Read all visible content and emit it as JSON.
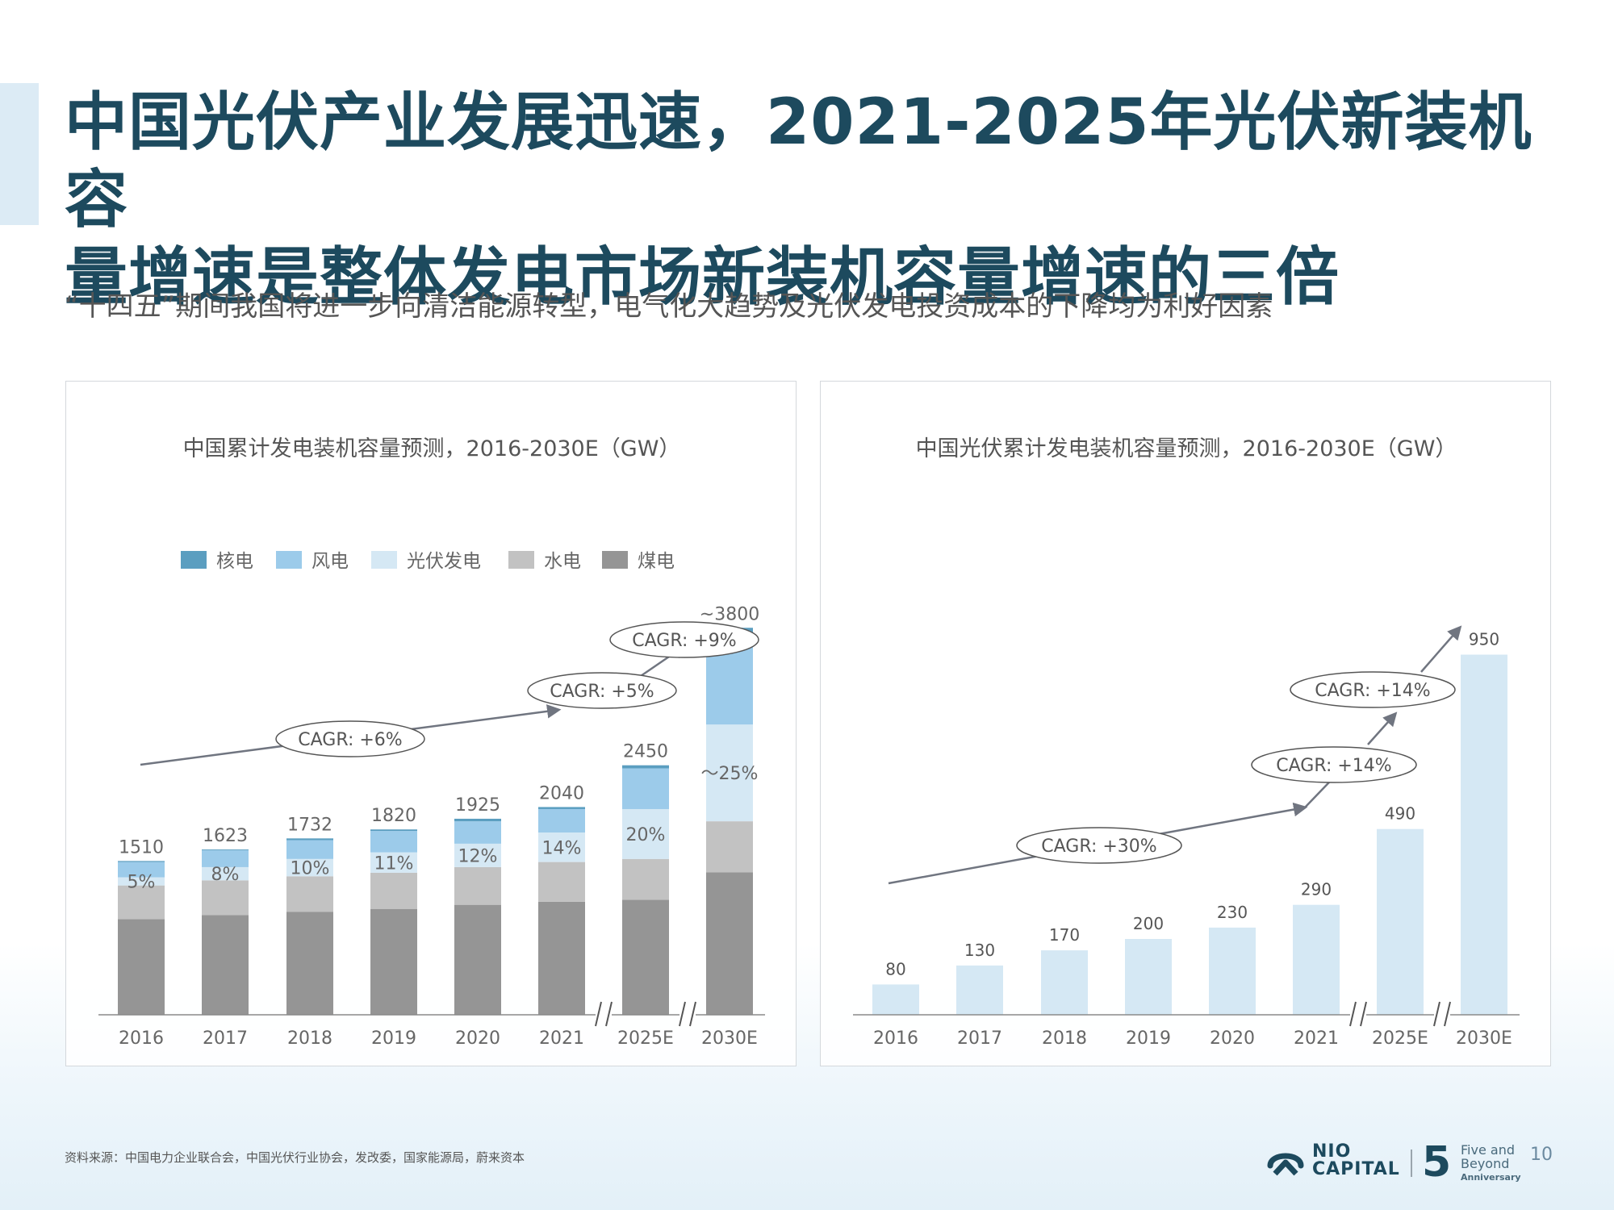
{
  "title_line1": "中国光伏产业发展迅速，2021-2025年光伏新装机容",
  "title_line2": "量增速是整体发电市场新装机容量增速的三倍",
  "subtitle": "“十四五”期间我国将进一步向清洁能源转型，电气化大趋势及光伏发电投资成本的下降均为利好因素",
  "footer": {
    "source": "资料来源：中国电力企业联合会，中国光伏行业协会，发改委，国家能源局，蔚来资本",
    "brand": "NIO CAPITAL",
    "brand_line1": "NIO",
    "brand_line2": "CAPITAL",
    "five": "5",
    "anniv_line1": "Five and",
    "anniv_line2": "Beyond",
    "anniv_line3": "Anniversary",
    "page": "10"
  },
  "colors": {
    "nuclear": "#5b9ec0",
    "wind": "#9ccbea",
    "solar": "#d5e8f4",
    "hydro": "#c2c2c2",
    "coal": "#959595",
    "title": "#1d4a5e",
    "arrow": "#707580"
  },
  "chart_data": [
    {
      "type": "bar",
      "stacked": true,
      "title": "中国累计发电装机容量预测，2016-2030E（GW）",
      "categories": [
        "2016",
        "2017",
        "2018",
        "2019",
        "2020",
        "2021",
        "2025E",
        "2030E"
      ],
      "totals_labels": [
        "1510",
        "1623",
        "1732",
        "1820",
        "1925",
        "2040",
        "2450",
        "~3800"
      ],
      "totals": [
        1510,
        1623,
        1732,
        1820,
        1925,
        2040,
        2450,
        3800
      ],
      "solar_share_labels": [
        "5%",
        "8%",
        "10%",
        "11%",
        "12%",
        "14%",
        "20%",
        "～25%"
      ],
      "series": [
        {
          "name": "煤电",
          "key": "coal",
          "values": [
            940,
            980,
            1010,
            1040,
            1080,
            1110,
            1130,
            1400
          ]
        },
        {
          "name": "水电",
          "key": "hydro",
          "values": [
            330,
            340,
            350,
            355,
            370,
            390,
            400,
            500
          ]
        },
        {
          "name": "光伏发电",
          "key": "solar",
          "values": [
            80,
            130,
            170,
            200,
            230,
            290,
            490,
            950
          ]
        },
        {
          "name": "风电",
          "key": "wind",
          "values": [
            150,
            165,
            185,
            210,
            220,
            230,
            400,
            800
          ]
        },
        {
          "name": "核电",
          "key": "nuclear",
          "values": [
            10,
            8,
            17,
            15,
            25,
            20,
            30,
            150
          ]
        }
      ],
      "legend": [
        "核电",
        "风电",
        "光伏发电",
        "水电",
        "煤电"
      ],
      "legend_keys": [
        "nuclear",
        "wind",
        "solar",
        "hydro",
        "coal"
      ],
      "legend_position": "top",
      "annotations": [
        "CAGR: +6%",
        "CAGR: +5%",
        "CAGR: +9%"
      ],
      "axis_break_between": [
        [
          "2021",
          "2025E"
        ],
        [
          "2025E",
          "2030E"
        ]
      ],
      "ylim": [
        0,
        4000
      ],
      "grid": false
    },
    {
      "type": "bar",
      "title": "中国光伏累计发电装机容量预测，2016-2030E（GW）",
      "categories": [
        "2016",
        "2017",
        "2018",
        "2019",
        "2020",
        "2021",
        "2025E",
        "2030E"
      ],
      "values": [
        80,
        130,
        170,
        200,
        230,
        290,
        490,
        950
      ],
      "value_labels": [
        "80",
        "130",
        "170",
        "200",
        "230",
        "290",
        "490",
        "950"
      ],
      "annotations": [
        "CAGR: +30%",
        "CAGR: +14%",
        "CAGR: +14%"
      ],
      "axis_break_between": [
        [
          "2021",
          "2025E"
        ],
        [
          "2025E",
          "2030E"
        ]
      ],
      "ylim": [
        0,
        1000
      ],
      "grid": false
    }
  ]
}
